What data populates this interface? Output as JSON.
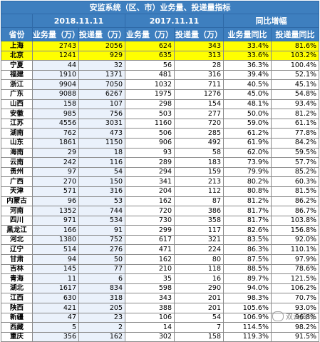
{
  "title": "安监系统（区、市）业务量、投递量指标",
  "headers": {
    "period1": "2018.11.11",
    "period2": "2017.11.11",
    "growth": "同比增幅",
    "province": "省份",
    "business": "业务量（万）",
    "delivery": "投递量（万）",
    "business_growth": "业务量同比",
    "delivery_growth": "投递量同比"
  },
  "rows": [
    {
      "p": "上海",
      "b18": "2743",
      "d18": "2056",
      "b17": "624",
      "d17": "343",
      "bg": "33.4%",
      "dg": "81.6%",
      "hl": true
    },
    {
      "p": "北京",
      "b18": "1241",
      "d18": "929",
      "b17": "635",
      "d17": "313",
      "bg": "33.6%",
      "dg": "103.2%",
      "hl": true
    },
    {
      "p": "宁夏",
      "b18": "44",
      "d18": "32",
      "b17": "56",
      "d17": "28",
      "bg": "36.3%",
      "dg": "100.4%"
    },
    {
      "p": "福建",
      "b18": "1910",
      "d18": "1371",
      "b17": "481",
      "d17": "316",
      "bg": "39.4%",
      "dg": "52.1%"
    },
    {
      "p": "浙江",
      "b18": "9904",
      "d18": "7050",
      "b17": "1032",
      "d17": "711",
      "bg": "40.5%",
      "dg": "45.1%"
    },
    {
      "p": "广东",
      "b18": "9088",
      "d18": "6267",
      "b17": "1975",
      "d17": "1276",
      "bg": "45.0%",
      "dg": "54.8%"
    },
    {
      "p": "山西",
      "b18": "158",
      "d18": "107",
      "b17": "298",
      "d17": "154",
      "bg": "48.1%",
      "dg": "93.4%"
    },
    {
      "p": "安徽",
      "b18": "985",
      "d18": "756",
      "b17": "503",
      "d17": "277",
      "bg": "50.0%",
      "dg": "81.2%"
    },
    {
      "p": "江苏",
      "b18": "4556",
      "d18": "3031",
      "b17": "1160",
      "d17": "720",
      "bg": "59.0%",
      "dg": "61.1%"
    },
    {
      "p": "湖南",
      "b18": "762",
      "d18": "473",
      "b17": "506",
      "d17": "285",
      "bg": "61.2%",
      "dg": "77.8%"
    },
    {
      "p": "山东",
      "b18": "1861",
      "d18": "1150",
      "b17": "906",
      "d17": "492",
      "bg": "61.9%",
      "dg": "84.2%"
    },
    {
      "p": "海南",
      "b18": "29",
      "d18": "18",
      "b17": "93",
      "d17": "58",
      "bg": "62.0%",
      "dg": "59.5%"
    },
    {
      "p": "云南",
      "b18": "242",
      "d18": "116",
      "b17": "289",
      "d17": "183",
      "bg": "73.9%",
      "dg": "57.7%"
    },
    {
      "p": "贵州",
      "b18": "97",
      "d18": "54",
      "b17": "294",
      "d17": "159",
      "bg": "79.9%",
      "dg": "85.2%"
    },
    {
      "p": "广西",
      "b18": "270",
      "d18": "150",
      "b17": "341",
      "d17": "213",
      "bg": "80.2%",
      "dg": "60.3%"
    },
    {
      "p": "天津",
      "b18": "571",
      "d18": "316",
      "b17": "204",
      "d17": "112",
      "bg": "80.8%",
      "dg": "81.5%"
    },
    {
      "p": "内蒙古",
      "b18": "96",
      "d18": "53",
      "b17": "162",
      "d17": "87",
      "bg": "81.2%",
      "dg": "86.2%"
    },
    {
      "p": "河南",
      "b18": "1352",
      "d18": "744",
      "b17": "720",
      "d17": "386",
      "bg": "81.7%",
      "dg": "86.7%"
    },
    {
      "p": "四川",
      "b18": "971",
      "d18": "534",
      "b17": "730",
      "d17": "358",
      "bg": "81.7%",
      "dg": "103.8%"
    },
    {
      "p": "黑龙江",
      "b18": "166",
      "d18": "91",
      "b17": "299",
      "d17": "117",
      "bg": "82.6%",
      "dg": "156.8%"
    },
    {
      "p": "河北",
      "b18": "1380",
      "d18": "752",
      "b17": "617",
      "d17": "321",
      "bg": "83.5%",
      "dg": "92.0%"
    },
    {
      "p": "辽宁",
      "b18": "514",
      "d18": "276",
      "b17": "471",
      "d17": "224",
      "bg": "86.3%",
      "dg": "110.1%"
    },
    {
      "p": "甘肃",
      "b18": "94",
      "d18": "50",
      "b17": "162",
      "d17": "80",
      "bg": "87.5%",
      "dg": "97.9%"
    },
    {
      "p": "吉林",
      "b18": "145",
      "d18": "77",
      "b17": "210",
      "d17": "118",
      "bg": "88.5%",
      "dg": "78.6%"
    },
    {
      "p": "青海",
      "b18": "11",
      "d18": "6",
      "b17": "35",
      "d17": "16",
      "bg": "89.7%",
      "dg": "121.5%"
    },
    {
      "p": "湖北",
      "b18": "1617",
      "d18": "834",
      "b17": "598",
      "d17": "290",
      "bg": "94.0%",
      "dg": "106.2%"
    },
    {
      "p": "江西",
      "b18": "630",
      "d18": "318",
      "b17": "343",
      "d17": "201",
      "bg": "98.3%",
      "dg": "70.7%"
    },
    {
      "p": "陕西",
      "b18": "421",
      "d18": "205",
      "b17": "388",
      "d17": "201",
      "bg": "105.6%",
      "dg": "93.0%"
    },
    {
      "p": "新疆",
      "b18": "47",
      "d18": "23",
      "b17": "106",
      "d17": "54",
      "bg": "106.9%",
      "dg": "96.8%"
    },
    {
      "p": "西藏",
      "b18": "5",
      "d18": "2",
      "b17": "14",
      "d17": "7",
      "bg": "114.5%",
      "dg": "98.2%"
    },
    {
      "p": "重庆",
      "b18": "356",
      "d18": "162",
      "b17": "302",
      "d17": "158",
      "bg": "119.3%",
      "dg": "91.5%"
    }
  ],
  "watermark": "双云资讯"
}
